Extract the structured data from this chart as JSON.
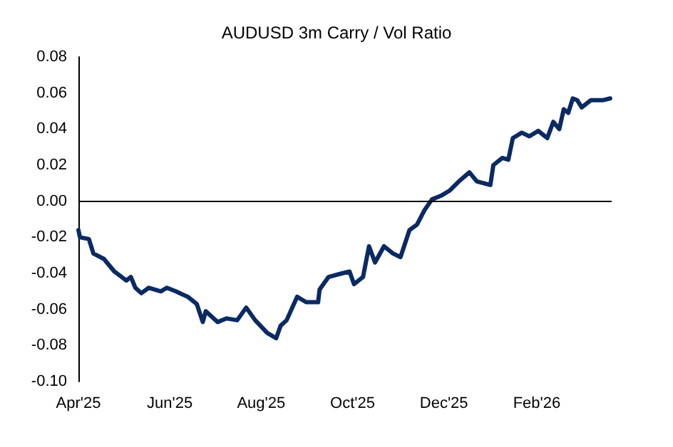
{
  "chart_data": {
    "type": "line",
    "title": "AUDUSD 3m Carry / Vol Ratio",
    "x": [
      "2025-04-01",
      "2025-04-02",
      "2025-04-08",
      "2025-04-11",
      "2025-04-18",
      "2025-04-25",
      "2025-05-03",
      "2025-05-06",
      "2025-05-09",
      "2025-05-13",
      "2025-05-18",
      "2025-05-26",
      "2025-05-30",
      "2025-06-05",
      "2025-06-13",
      "2025-06-19",
      "2025-06-23",
      "2025-06-25",
      "2025-07-03",
      "2025-07-09",
      "2025-07-16",
      "2025-07-22",
      "2025-07-28",
      "2025-08-05",
      "2025-08-11",
      "2025-08-14",
      "2025-08-18",
      "2025-08-25",
      "2025-08-31",
      "2025-09-08",
      "2025-09-09",
      "2025-09-15",
      "2025-09-24",
      "2025-09-29",
      "2025-10-02",
      "2025-10-08",
      "2025-10-12",
      "2025-10-16",
      "2025-10-22",
      "2025-10-28",
      "2025-11-02",
      "2025-11-08",
      "2025-11-13",
      "2025-11-18",
      "2025-11-23",
      "2025-11-29",
      "2025-12-05",
      "2025-12-11",
      "2025-12-18",
      "2025-12-23",
      "2026-01-01",
      "2026-01-03",
      "2026-01-09",
      "2026-01-13",
      "2026-01-16",
      "2026-01-22",
      "2026-01-27",
      "2026-02-02",
      "2026-02-08",
      "2026-02-12",
      "2026-02-16",
      "2026-02-19",
      "2026-02-22",
      "2026-02-25",
      "2026-02-28",
      "2026-03-03",
      "2026-03-09",
      "2026-03-17",
      "2026-03-22"
    ],
    "series": [
      {
        "color": "#0b2a63",
        "values": [
          -0.016,
          -0.02,
          -0.021,
          -0.029,
          -0.032,
          -0.039,
          -0.044,
          -0.042,
          -0.048,
          -0.051,
          -0.048,
          -0.05,
          -0.048,
          -0.05,
          -0.053,
          -0.057,
          -0.067,
          -0.061,
          -0.067,
          -0.065,
          -0.066,
          -0.059,
          -0.066,
          -0.073,
          -0.076,
          -0.069,
          -0.066,
          -0.053,
          -0.056,
          -0.056,
          -0.049,
          -0.042,
          -0.04,
          -0.039,
          -0.046,
          -0.042,
          -0.025,
          -0.034,
          -0.025,
          -0.029,
          -0.031,
          -0.016,
          -0.013,
          -0.005,
          0.001,
          0.003,
          0.006,
          0.011,
          0.016,
          0.011,
          0.009,
          0.02,
          0.024,
          0.023,
          0.035,
          0.038,
          0.036,
          0.039,
          0.035,
          0.044,
          0.04,
          0.051,
          0.049,
          0.057,
          0.056,
          0.052,
          0.056,
          0.056,
          0.057
        ]
      }
    ],
    "xlim": [
      "2025-04-01",
      "2026-03-23"
    ],
    "xticks": [
      {
        "value": "2025-04-01",
        "label": "Apr'25"
      },
      {
        "value": "2025-06-01",
        "label": "Jun'25"
      },
      {
        "value": "2025-08-01",
        "label": "Aug'25"
      },
      {
        "value": "2025-10-01",
        "label": "Oct'25"
      },
      {
        "value": "2025-12-01",
        "label": "Dec'25"
      },
      {
        "value": "2026-02-01",
        "label": "Feb'26"
      }
    ],
    "ylim": [
      -0.1,
      0.08
    ],
    "yticks": [
      {
        "value": -0.1,
        "label": "-0.10"
      },
      {
        "value": -0.08,
        "label": "-0.08"
      },
      {
        "value": -0.06,
        "label": "-0.06"
      },
      {
        "value": -0.04,
        "label": "-0.04"
      },
      {
        "value": -0.02,
        "label": "-0.02"
      },
      {
        "value": 0,
        "label": "0.00"
      },
      {
        "value": 0.02,
        "label": "0.02"
      },
      {
        "value": 0.04,
        "label": "0.04"
      },
      {
        "value": 0.06,
        "label": "0.06"
      },
      {
        "value": 0.08,
        "label": "0.08"
      }
    ],
    "ref_lines": [
      {
        "axis": "y",
        "value": 0,
        "color": "#000000"
      }
    ],
    "grid": false,
    "marker": "none",
    "line_style": "solid"
  }
}
